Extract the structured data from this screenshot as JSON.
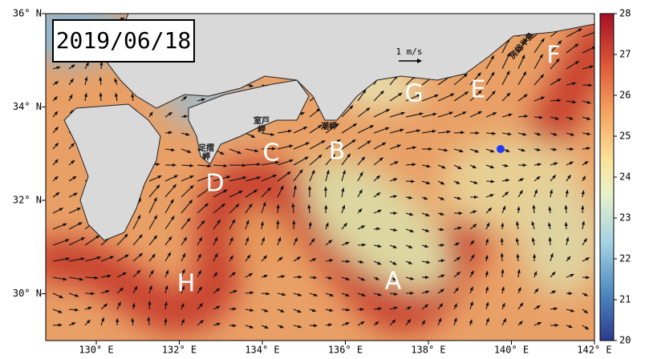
{
  "title": "2019/06/18",
  "lat_labels": [
    "36° N",
    "34° N",
    "32° N",
    "30° N"
  ],
  "lon_labels": [
    "130° E",
    "132° E",
    "134° E",
    "136° E",
    "138° E",
    "140° E",
    "142° E"
  ],
  "colorbar": {
    "range": [
      20,
      28
    ],
    "ticks": [
      20,
      21,
      22,
      23,
      24,
      25,
      26,
      27,
      28
    ]
  },
  "regions": [
    "A",
    "B",
    "C",
    "D",
    "E",
    "F",
    "G",
    "H"
  ],
  "places": [
    "室戸岬",
    "足摺岬",
    "潮岬",
    "房総半島"
  ],
  "scale_label": "1 m/s"
}
